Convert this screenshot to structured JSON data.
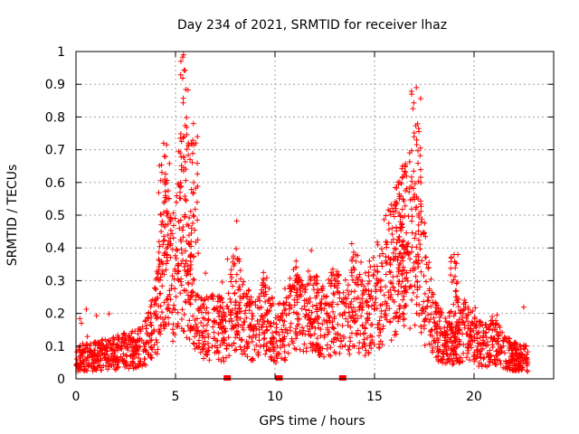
{
  "chart_data": {
    "type": "scatter",
    "title": "Day 234 of 2021, SRMTID for receiver lhaz",
    "xlabel": "GPS time / hours",
    "ylabel": "SRMTID / TECUs",
    "xlim": [
      0,
      24
    ],
    "ylim": [
      0,
      1
    ],
    "x_ticks": [
      0,
      5,
      10,
      15,
      20
    ],
    "x_tick_labels": [
      "0",
      "5",
      "10",
      "15",
      "20"
    ],
    "y_ticks": [
      0,
      0.1,
      0.2,
      0.3,
      0.4,
      0.5,
      0.6,
      0.7,
      0.8,
      0.9,
      1
    ],
    "y_tick_labels": [
      "0",
      "0.1",
      "0.2",
      "0.3",
      "0.4",
      "0.5",
      "0.6",
      "0.7",
      "0.8",
      "0.9",
      "1"
    ],
    "grid": true,
    "marker": "plus",
    "color": "#ff0000",
    "envelope": {
      "description": "approximate typical SRMTID level vs hour (data units)",
      "x": [
        0,
        1,
        2,
        3,
        3.5,
        4.0,
        4.3,
        4.5,
        4.8,
        5.0,
        5.3,
        5.5,
        5.8,
        6.0,
        6.5,
        7.0,
        7.5,
        8.0,
        8.5,
        9.0,
        9.5,
        10.0,
        10.5,
        11.0,
        11.5,
        12.0,
        12.5,
        13.0,
        13.5,
        14.0,
        14.5,
        15.0,
        15.5,
        16.0,
        16.5,
        17.0,
        17.3,
        17.6,
        18.0,
        18.5,
        19.0,
        19.5,
        20.0,
        20.5,
        21.0,
        21.5,
        22.0,
        22.7
      ],
      "y": [
        0.06,
        0.07,
        0.08,
        0.09,
        0.11,
        0.18,
        0.28,
        0.4,
        0.3,
        0.32,
        0.42,
        0.38,
        0.28,
        0.18,
        0.15,
        0.17,
        0.14,
        0.25,
        0.18,
        0.15,
        0.2,
        0.13,
        0.15,
        0.22,
        0.18,
        0.2,
        0.17,
        0.22,
        0.18,
        0.25,
        0.2,
        0.24,
        0.3,
        0.35,
        0.4,
        0.45,
        0.42,
        0.25,
        0.15,
        0.12,
        0.09,
        0.15,
        0.12,
        0.1,
        0.12,
        0.08,
        0.07,
        0.06
      ]
    },
    "peaks": [
      {
        "x": 4.4,
        "y": 0.72
      },
      {
        "x": 5.4,
        "y": 0.99
      },
      {
        "x": 5.9,
        "y": 0.78
      },
      {
        "x": 16.4,
        "y": 0.65
      },
      {
        "x": 17.1,
        "y": 0.89
      },
      {
        "x": 19.0,
        "y": 0.38
      }
    ],
    "data_gaps_hours": [
      7.6,
      10.2,
      13.4
    ],
    "x_max_data": 22.7
  }
}
